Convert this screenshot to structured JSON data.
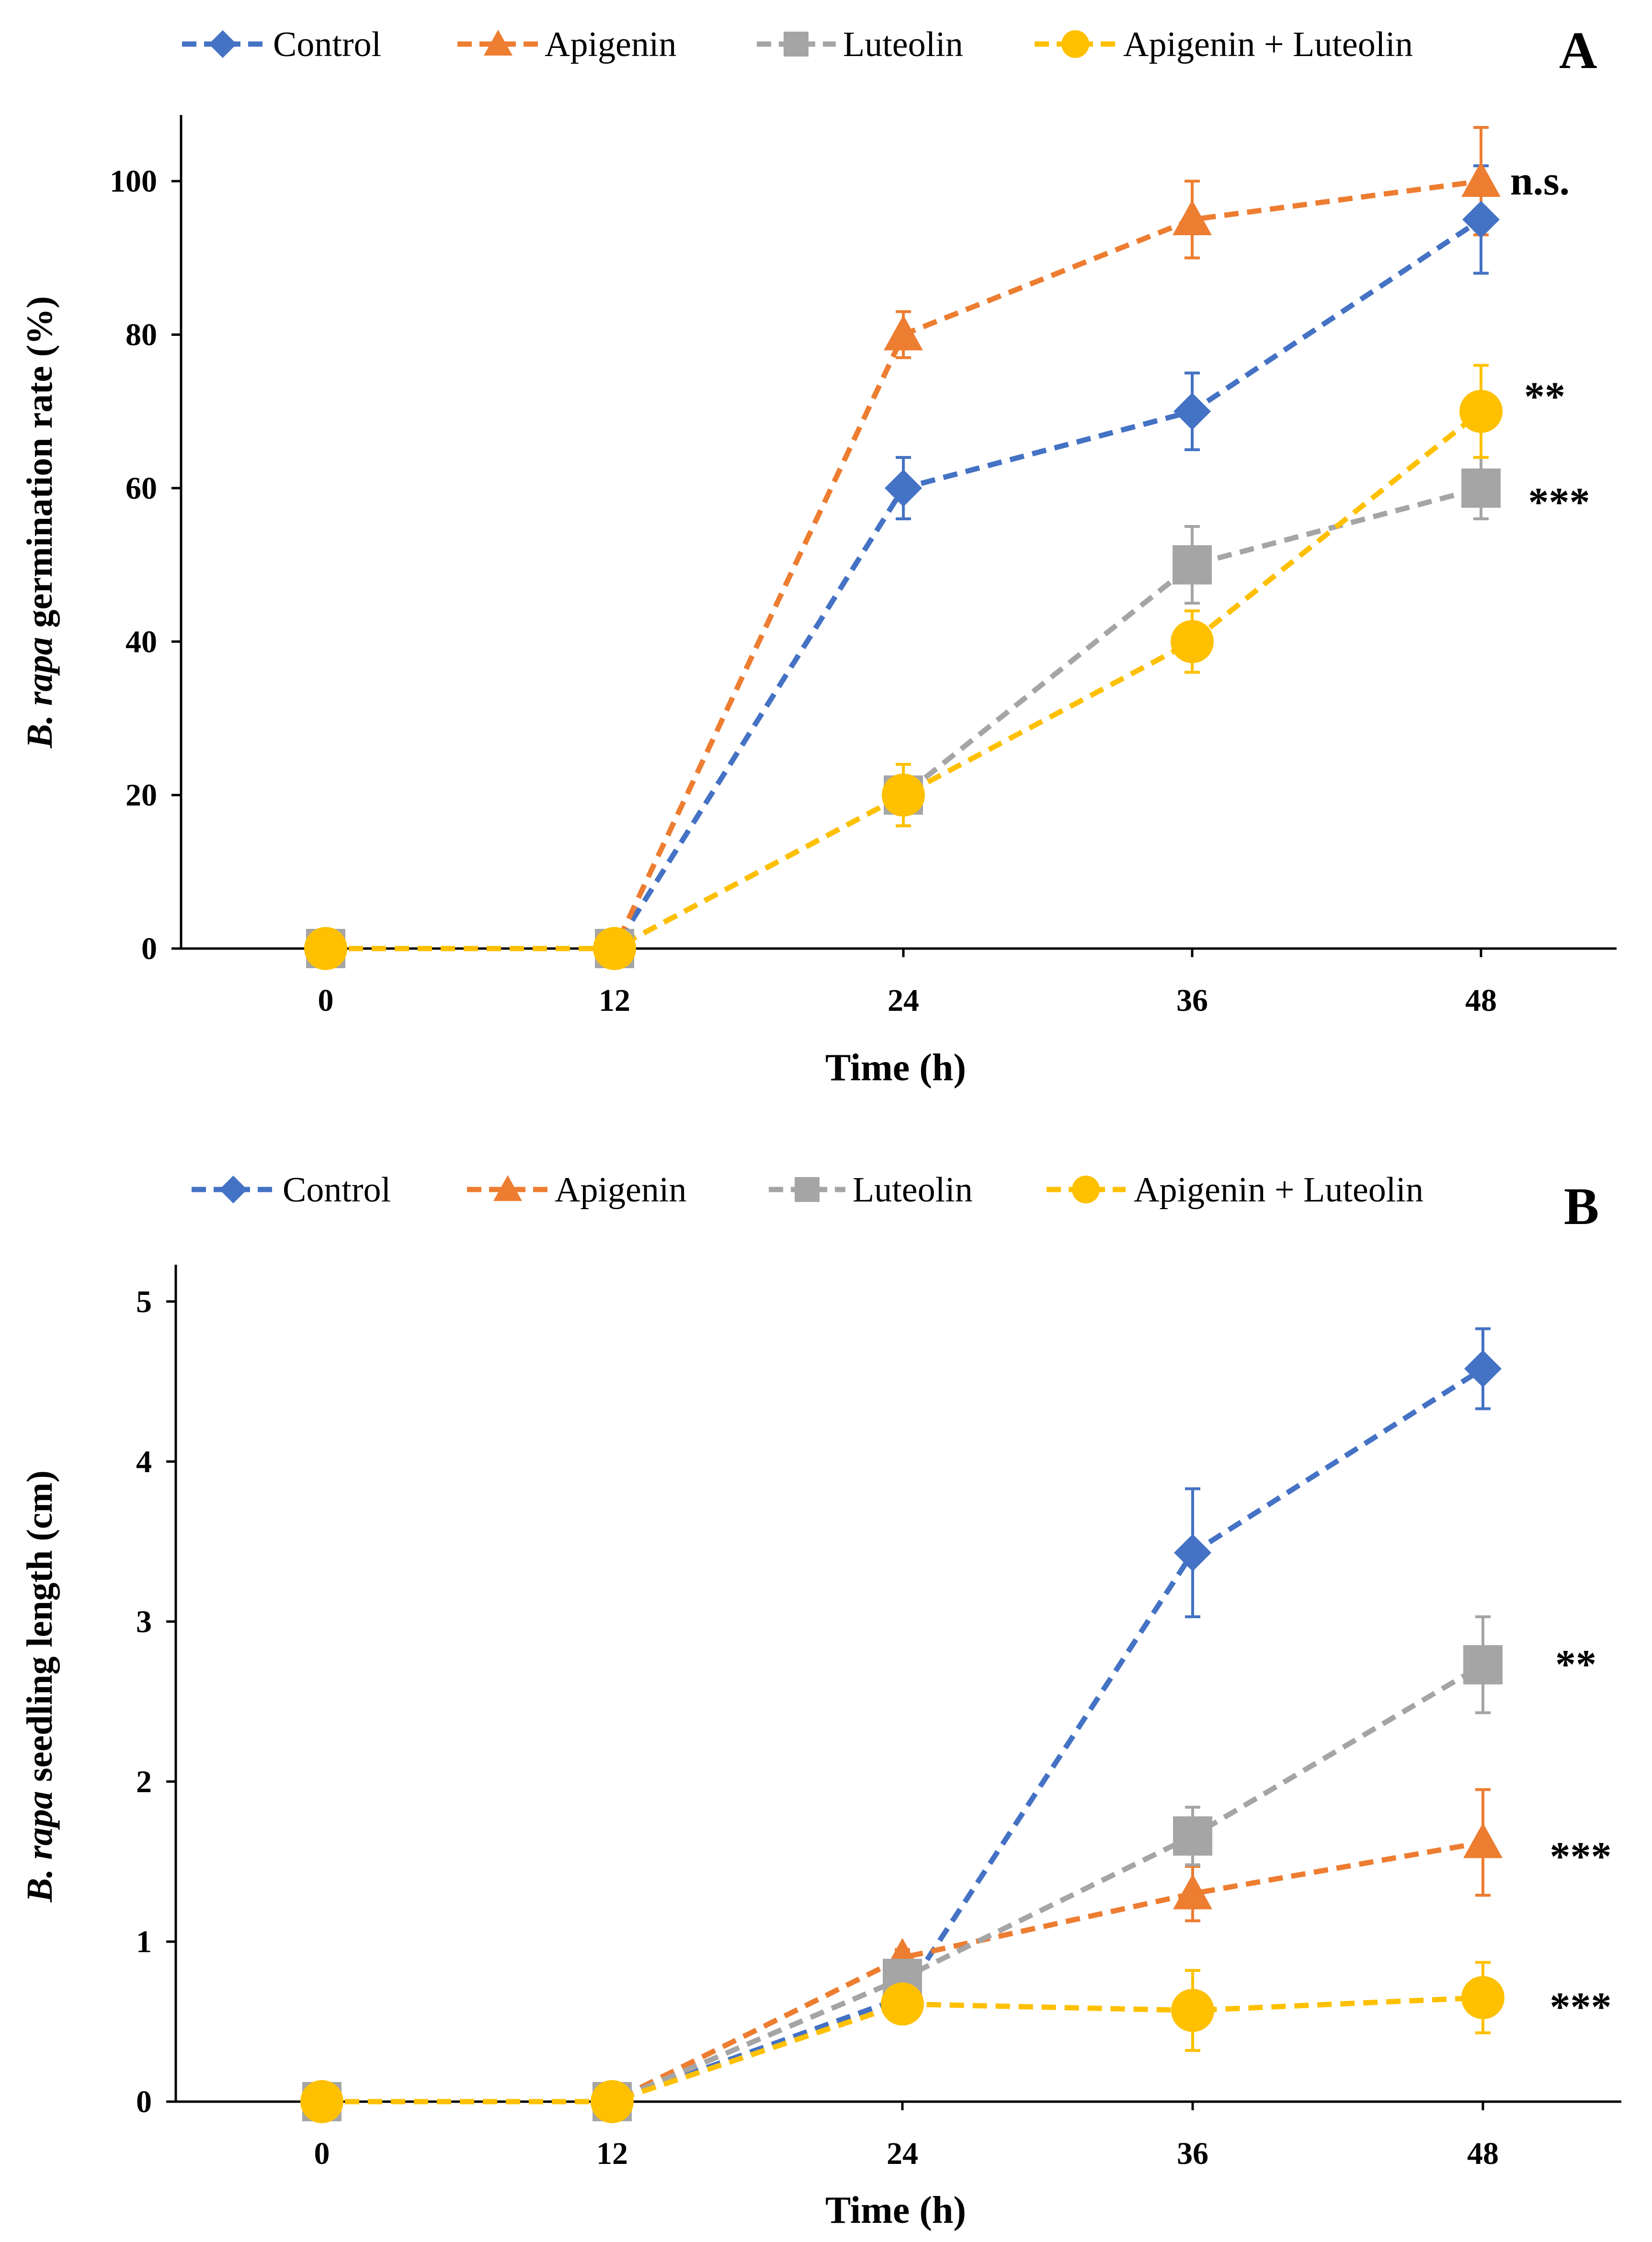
{
  "colors": {
    "control": "#4472C4",
    "apigenin": "#ED7D31",
    "luteolin": "#A5A5A5",
    "combo": "#FFC000",
    "axis": "#000000"
  },
  "legend": [
    {
      "key": "control",
      "label": "Control",
      "marker": "diamond"
    },
    {
      "key": "apigenin",
      "label": "Apigenin",
      "marker": "triangle"
    },
    {
      "key": "luteolin",
      "label": "Luteolin",
      "marker": "square"
    },
    {
      "key": "combo",
      "label": "Apigenin + Luteolin",
      "marker": "circle"
    }
  ],
  "chart_data": [
    {
      "panel": "A",
      "type": "line",
      "xlabel": "Time (h)",
      "ylabel_italic": "B. rapa",
      "ylabel_rest": " germination rate (%)",
      "x": [
        0,
        12,
        24,
        36,
        48
      ],
      "xticks": [
        "0",
        "12",
        "24",
        "36",
        "48"
      ],
      "yticks": [
        "0",
        "20",
        "40",
        "60",
        "80",
        "100"
      ],
      "ylim": [
        0,
        108
      ],
      "series": [
        {
          "key": "control",
          "name": "Control",
          "values": [
            0,
            0,
            60,
            70,
            95
          ],
          "err": [
            0,
            0,
            4,
            5,
            7
          ]
        },
        {
          "key": "apigenin",
          "name": "Apigenin",
          "values": [
            0,
            0,
            80,
            95,
            100
          ],
          "err": [
            0,
            0,
            3,
            5,
            7
          ]
        },
        {
          "key": "luteolin",
          "name": "Luteolin",
          "values": [
            0,
            0,
            20,
            50,
            60
          ],
          "err": [
            0,
            0,
            4,
            5,
            4
          ]
        },
        {
          "key": "combo",
          "name": "Apigenin + Luteolin",
          "values": [
            0,
            0,
            20,
            40,
            70
          ],
          "err": [
            0,
            0,
            4,
            4,
            6
          ]
        }
      ],
      "annotations": [
        {
          "text": "n.s.",
          "value": 100
        },
        {
          "text": "**",
          "value": 72
        },
        {
          "text": "***",
          "value": 60
        }
      ]
    },
    {
      "panel": "B",
      "type": "line",
      "xlabel": "Time (h)",
      "ylabel_italic": "B. rapa",
      "ylabel_rest": " seedling length (cm)",
      "x": [
        0,
        12,
        24,
        36,
        48
      ],
      "xticks": [
        "0",
        "12",
        "24",
        "36",
        "48"
      ],
      "yticks": [
        "0",
        "1",
        "2",
        "3",
        "4",
        "5"
      ],
      "ylim": [
        0,
        5.2
      ],
      "series": [
        {
          "key": "control",
          "name": "Control",
          "values": [
            0,
            0,
            0.65,
            3.43,
            4.58
          ],
          "err": [
            0,
            0,
            0.05,
            0.4,
            0.25
          ]
        },
        {
          "key": "apigenin",
          "name": "Apigenin",
          "values": [
            0,
            0,
            0.9,
            1.3,
            1.62
          ],
          "err": [
            0,
            0,
            0.05,
            0.17,
            0.33
          ]
        },
        {
          "key": "luteolin",
          "name": "Luteolin",
          "values": [
            0,
            0,
            0.77,
            1.66,
            2.73
          ],
          "err": [
            0,
            0,
            0.05,
            0.18,
            0.3
          ]
        },
        {
          "key": "combo",
          "name": "Apigenin + Luteolin",
          "values": [
            0,
            0,
            0.61,
            0.57,
            0.65
          ],
          "err": [
            0,
            0,
            0.05,
            0.25,
            0.22
          ]
        }
      ],
      "annotations": [
        {
          "text": "**",
          "value": 2.73
        },
        {
          "text": "***",
          "value": 1.62
        },
        {
          "text": "***",
          "value": 0.68
        }
      ]
    }
  ]
}
